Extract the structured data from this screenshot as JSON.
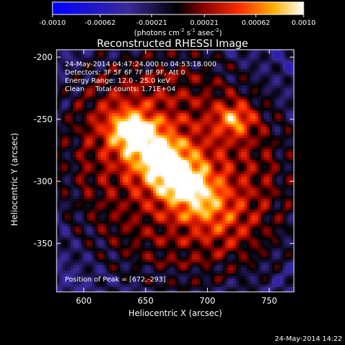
{
  "colorbar": {
    "ticks": [
      "-0.0010",
      "-0.00062",
      "-0.00021",
      "0.00021",
      "0.00062",
      "0.0010"
    ],
    "tick_values": [
      -0.001,
      -0.00062,
      -0.00021,
      0.00021,
      0.00062,
      0.001
    ],
    "unit_main": "(photons cm",
    "unit_sup1": "-2",
    "unit_mid": " s",
    "unit_sup2": "-1",
    "unit_tail": " asec",
    "unit_sup3": "-2",
    "unit_close": ")"
  },
  "chart_data": {
    "type": "heatmap",
    "title": "Reconstructed RHESSI Image",
    "xlabel": "Heliocentric X (arcsec)",
    "ylabel": "Heliocentric Y (arcsec)",
    "xlim": [
      578,
      770
    ],
    "ylim": [
      -389,
      -194
    ],
    "xticks": [
      600,
      650,
      700,
      750
    ],
    "yticks": [
      -200,
      -250,
      -300,
      -350
    ],
    "value_range": [
      -0.001,
      0.001
    ],
    "colormap": "blue-black-red-yellow-white",
    "sources": [
      {
        "x": 672,
        "y": -293
      },
      {
        "x": 640,
        "y": -260
      },
      {
        "x": 722,
        "y": -250
      }
    ],
    "annotations": [
      "24-May-2014 04:47:24.000 to 04:53:18.000",
      "Detectors: 3F 5F 6F 7F 8F 9F, Att 0",
      "Energy Range: 12.0 - 25.0 keV",
      "Clean     Total counts: 1.71E+04"
    ],
    "peak_label": "Position of Peak = [672,-293]"
  },
  "footer_timestamp": "24-May-2014 14:22"
}
